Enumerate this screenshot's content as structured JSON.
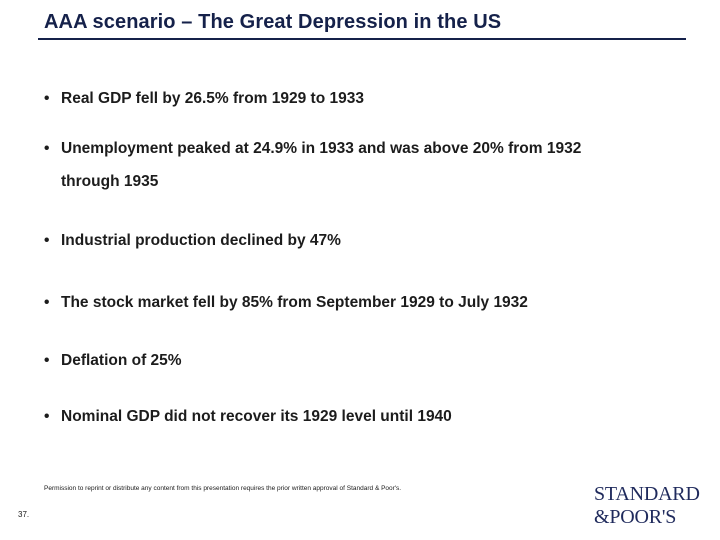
{
  "slide": {
    "title": "AAA scenario – The Great Depression in the US",
    "accent_color": "#15214a"
  },
  "bullets": [
    {
      "text": "Real GDP fell by 26.5% from 1929 to 1933",
      "continuation": ""
    },
    {
      "text": "Unemployment peaked at 24.9% in 1933 and was above 20% from 1932",
      "continuation": "through 1935"
    },
    {
      "text": "Industrial production declined by 47%",
      "continuation": ""
    },
    {
      "text": "The stock market fell by 85% from September 1929 to July 1932",
      "continuation": ""
    },
    {
      "text": "Deflation of 25%",
      "continuation": ""
    },
    {
      "text": "Nominal GDP did not recover its 1929 level until 1940",
      "continuation": ""
    }
  ],
  "bullet_glyph": "•",
  "footer": {
    "page_number": "37.",
    "disclaimer": "Permission to reprint or distribute any content from this presentation requires the prior written approval of Standard & Poor's.",
    "logo_line1": "STANDARD",
    "logo_line2": "&POOR'S"
  }
}
